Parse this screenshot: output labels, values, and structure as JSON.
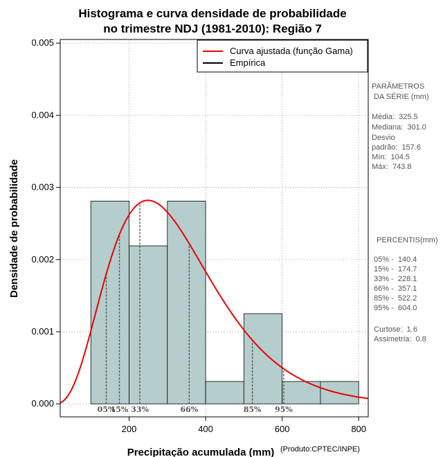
{
  "chart_data": {
    "type": "histogram",
    "title_lines": [
      "Histograma e curva densidade de probabilidade",
      "no trimestre NDJ (1981-2010): Região 7"
    ],
    "xlabel": "Precipitação acumulada (mm)",
    "ylabel": "Densidade de probabilidade",
    "credit": "(Produto:CPTEC/INPE)",
    "xlim": [
      20,
      825
    ],
    "ylim": [
      -0.00018,
      0.00505
    ],
    "x_ticks": [
      200,
      400,
      600,
      800
    ],
    "y_ticks": [
      0.0,
      0.001,
      0.002,
      0.003,
      0.004,
      0.005
    ],
    "y_tick_labels": [
      "0.000",
      "0.001",
      "0.002",
      "0.003",
      "0.004",
      "0.005"
    ],
    "grid": true,
    "bins": [
      {
        "from": 100,
        "to": 200,
        "density": 0.00281
      },
      {
        "from": 200,
        "to": 300,
        "density": 0.00219
      },
      {
        "from": 300,
        "to": 400,
        "density": 0.00281
      },
      {
        "from": 400,
        "to": 500,
        "density": 0.00031
      },
      {
        "from": 500,
        "to": 600,
        "density": 0.00125
      },
      {
        "from": 600,
        "to": 700,
        "density": 0.00031
      },
      {
        "from": 700,
        "to": 800,
        "density": 0.00031
      }
    ],
    "bar_color": "#b5cdcd",
    "curve_color": "#ee0000",
    "gamma_fit": {
      "mean": 325.5,
      "sd": 157.6
    },
    "legend": {
      "position": "top-right",
      "entries": [
        {
          "label": "Curva ajustada (função Gama)",
          "color": "#ee0000"
        },
        {
          "label": "Empírica",
          "color": "#000000"
        }
      ]
    },
    "percentile_lines": [
      {
        "label": "05%",
        "x": 140.4
      },
      {
        "label": "15%",
        "x": 174.7
      },
      {
        "label": "33%",
        "x": 228.1
      },
      {
        "label": "66%",
        "x": 357.1
      },
      {
        "label": "85%",
        "x": 522.2
      },
      {
        "label": "95%",
        "x": 604.0
      }
    ]
  },
  "sidebar": {
    "params_title": [
      "PARÂMETROS",
      " DA SÉRIE (mm)"
    ],
    "params": [
      "Média:  325.5",
      "Mediana:  301.0",
      "Desvio",
      "padrão:  157.6",
      "Mín:  104.5",
      "Máx:  743.8"
    ],
    "percentiles_title": "PERCENTIS(mm)",
    "percentiles": [
      "05% -  140.4",
      "15% -  174.7",
      "33% -  228.1",
      "66% -  357.1",
      "85% -  522.2",
      "95% -  604.0"
    ],
    "shape_stats": [
      "Curtose:  1.6",
      "Assimetria:  0.8"
    ]
  }
}
